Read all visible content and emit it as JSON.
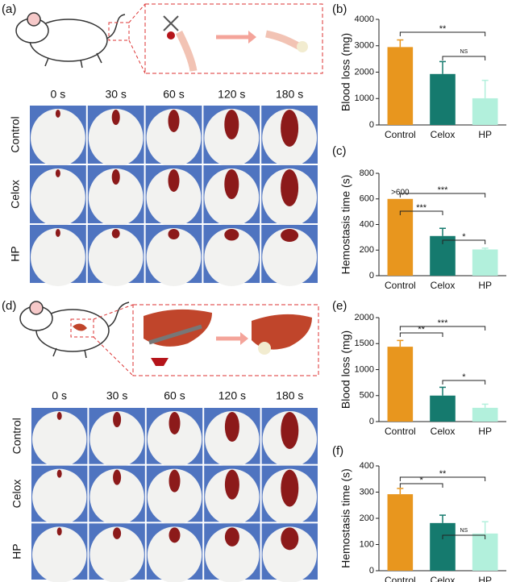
{
  "figure": {
    "panel_labels": [
      "(a)",
      "(b)",
      "(c)",
      "(d)",
      "(e)",
      "(f)"
    ],
    "photo_grids": [
      {
        "times": [
          "0 s",
          "30 s",
          "60 s",
          "120 s",
          "180 s"
        ],
        "rows": [
          "Control",
          "Celox",
          "HP"
        ]
      },
      {
        "times": [
          "0 s",
          "30 s",
          "60 s",
          "120 s",
          "180 s"
        ],
        "rows": [
          "Control",
          "Celox",
          "HP"
        ]
      }
    ]
  },
  "chart_data": [
    {
      "type": "bar",
      "ylabel": "Blood loss (mg)",
      "categories": [
        "Control",
        "Celox",
        "HP"
      ],
      "values": [
        2950,
        1930,
        1010
      ],
      "errors": [
        270,
        470,
        680
      ],
      "colors": [
        "#e8961e",
        "#157a6e",
        "#b2f0dc"
      ],
      "ylim": [
        0,
        4000
      ],
      "yticks": [
        0,
        1000,
        2000,
        3000,
        4000
      ],
      "annotations": [
        "**",
        "NS"
      ]
    },
    {
      "type": "bar",
      "ylabel": "Hemostasis  time (s)",
      "categories": [
        "Control",
        "Celox",
        "HP"
      ],
      "values": [
        600,
        310,
        205
      ],
      "errors": [
        0,
        60,
        10
      ],
      "value_labels": [
        ">600",
        null,
        null
      ],
      "colors": [
        "#e8961e",
        "#157a6e",
        "#b2f0dc"
      ],
      "ylim": [
        0,
        800
      ],
      "yticks": [
        0,
        200,
        400,
        600,
        800
      ],
      "annotations": [
        "***",
        "***",
        "*"
      ]
    },
    {
      "type": "bar",
      "ylabel": "Blood loss (mg)",
      "categories": [
        "Control",
        "Celox",
        "HP"
      ],
      "values": [
        1440,
        500,
        265
      ],
      "errors": [
        120,
        160,
        70
      ],
      "colors": [
        "#e8961e",
        "#157a6e",
        "#b2f0dc"
      ],
      "ylim": [
        0,
        2000
      ],
      "yticks": [
        0,
        500,
        1000,
        1500,
        2000
      ],
      "annotations": [
        "**",
        "***",
        "*"
      ]
    },
    {
      "type": "bar",
      "ylabel": "Hemostasis  time (s)",
      "categories": [
        "Control",
        "Celox",
        "HP"
      ],
      "values": [
        292,
        182,
        142
      ],
      "errors": [
        22,
        30,
        45
      ],
      "colors": [
        "#e8961e",
        "#157a6e",
        "#b2f0dc"
      ],
      "ylim": [
        0,
        400
      ],
      "yticks": [
        0,
        100,
        200,
        300,
        400
      ],
      "annotations": [
        "*",
        "**",
        "NS"
      ]
    }
  ]
}
